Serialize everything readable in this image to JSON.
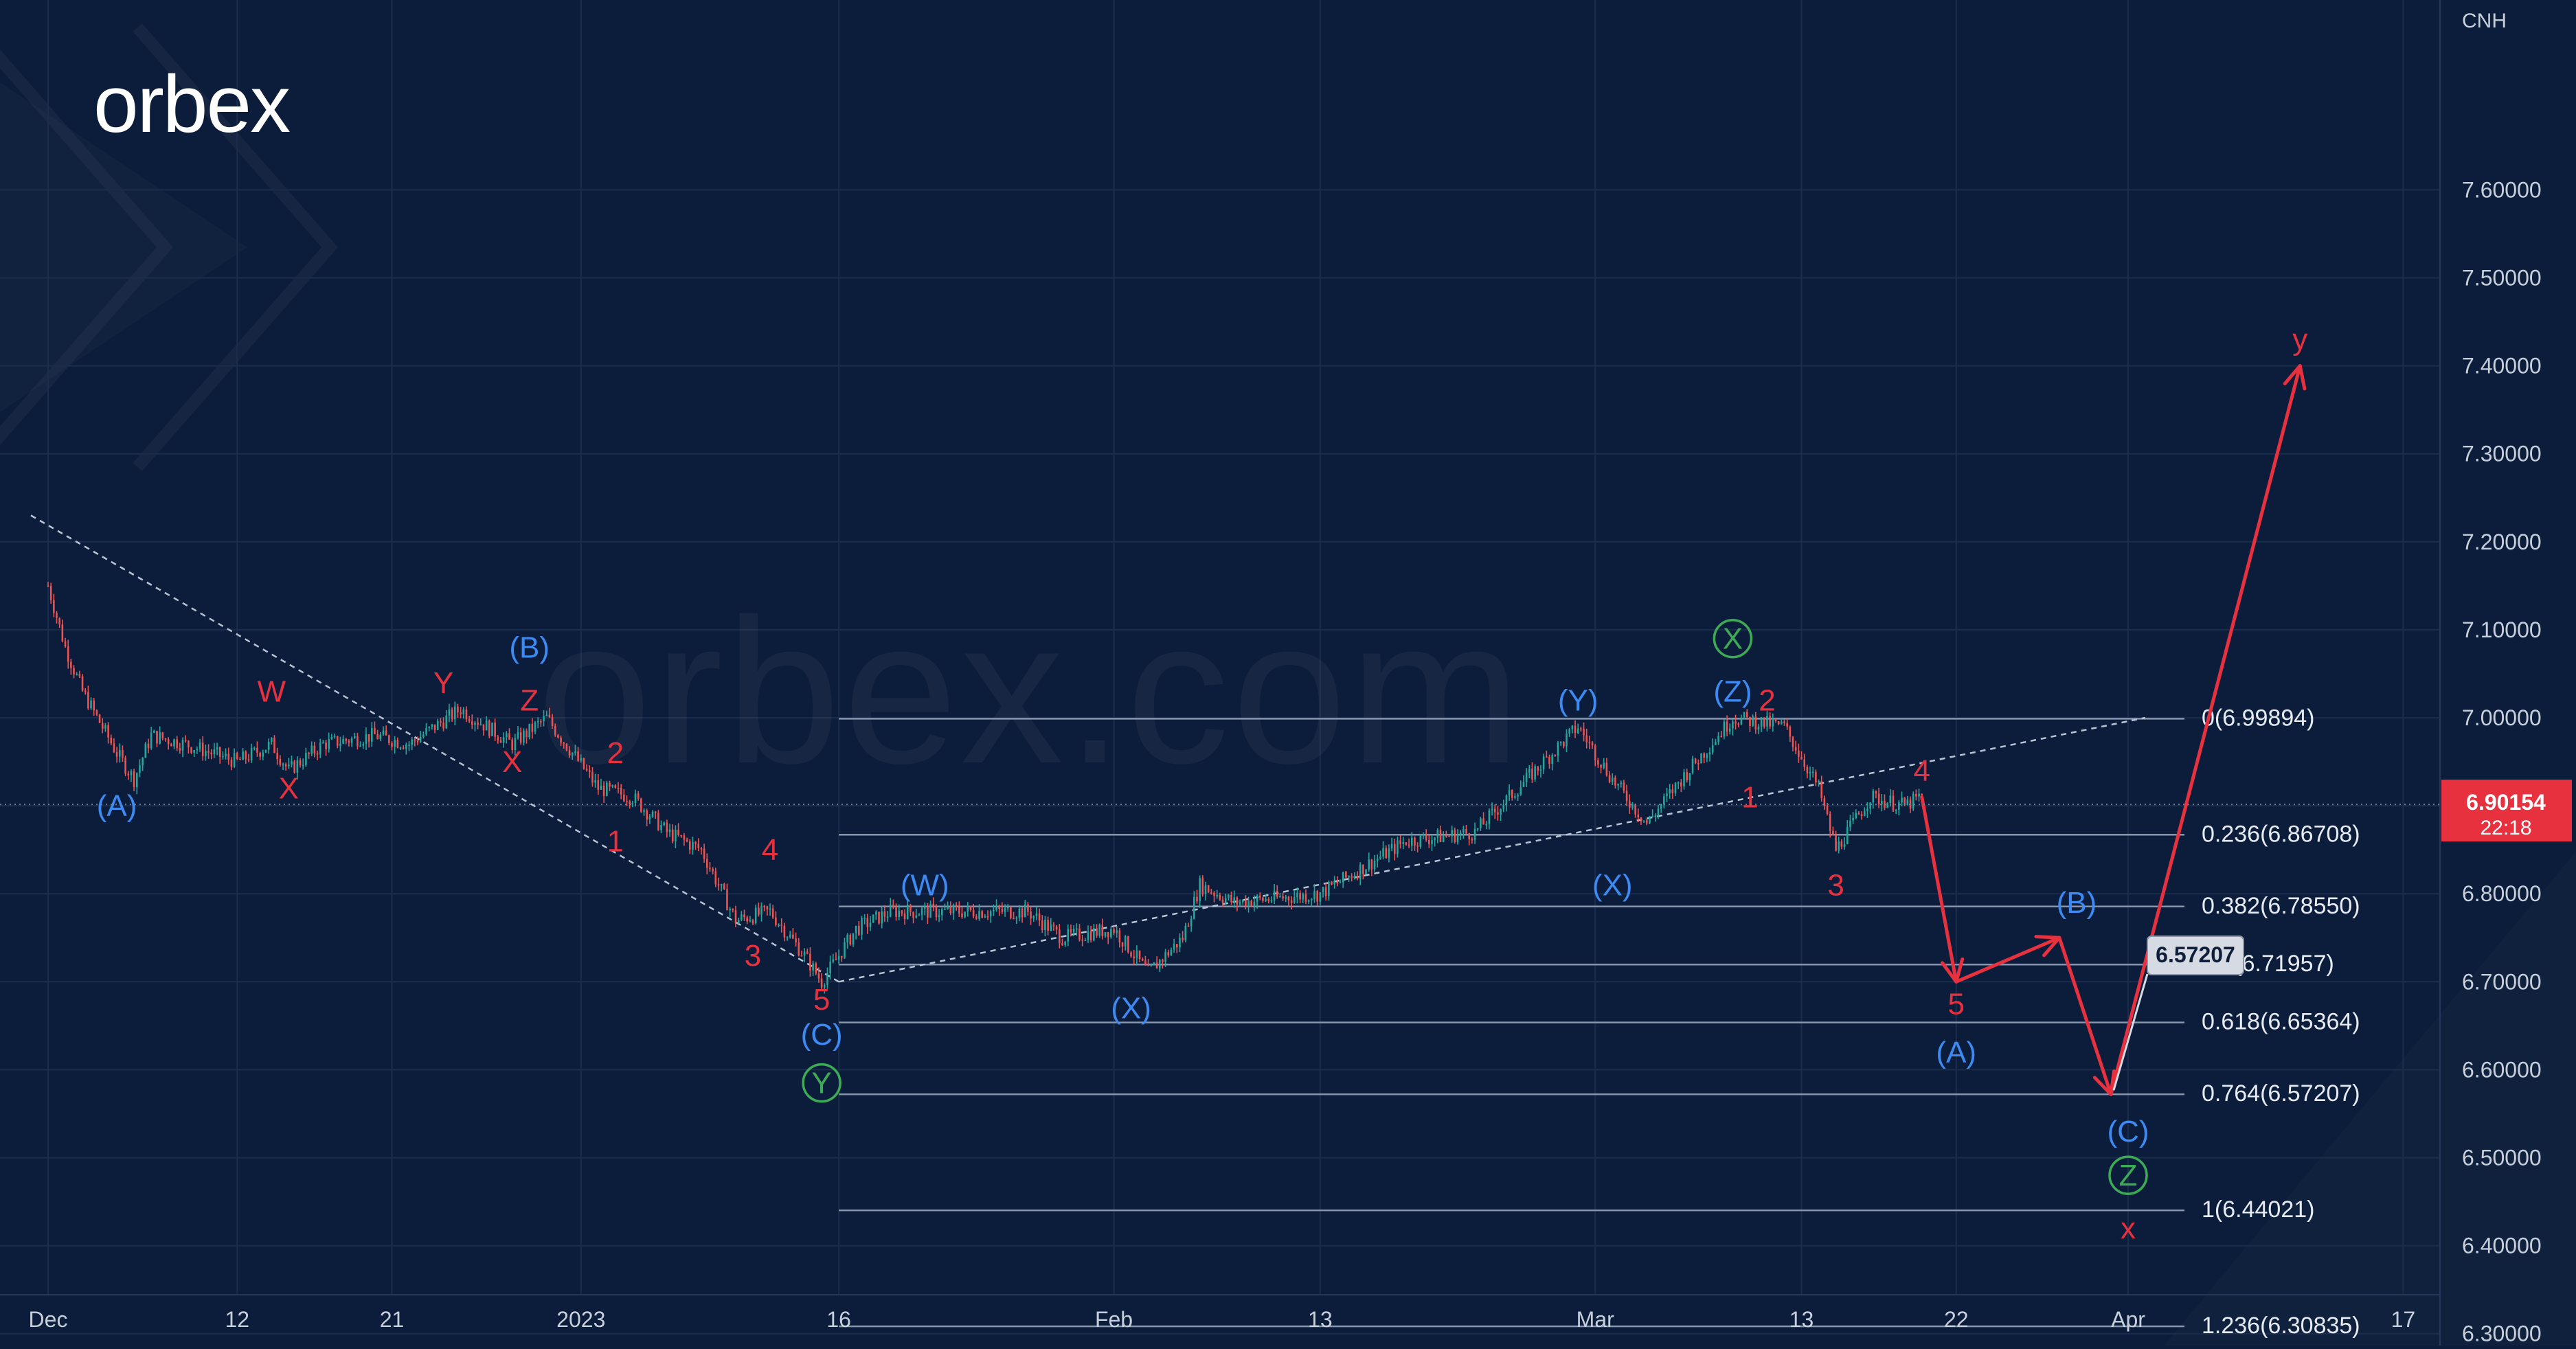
{
  "brand": {
    "logo_text": "orbex",
    "watermark_text": "orbex.com"
  },
  "colors": {
    "background": "#0c1d3b",
    "grid": "#1b2d4d",
    "candle_up": "#26a69a",
    "candle_down": "#ef5350",
    "wave_red": "#e8313f",
    "wave_blue": "#3c8af2",
    "wave_green": "#3daa55",
    "fib_line": "#8796ad",
    "axis_text": "#c7cfdb",
    "price_tag": "#e8313f"
  },
  "chart_data": {
    "type": "candlestick",
    "symbol": "CNH",
    "y_axis": {
      "ticks": [
        "7.60000",
        "7.50000",
        "7.40000",
        "7.30000",
        "7.20000",
        "7.10000",
        "7.00000",
        "6.90000",
        "6.80000",
        "6.70000",
        "6.60000",
        "6.50000",
        "6.40000",
        "6.30000"
      ],
      "range": [
        6.255,
        7.745
      ]
    },
    "x_axis": {
      "ticks": [
        "Dec",
        "12",
        "21",
        "2023",
        "16",
        "Feb",
        "13",
        "Mar",
        "13",
        "22",
        "Apr",
        "17"
      ],
      "dates": [
        "2022-12-01",
        "2022-12-12",
        "2022-12-21",
        "2023-01-01",
        "2023-01-16",
        "2023-02-01",
        "2023-02-13",
        "2023-03-01",
        "2023-03-13",
        "2023-03-22",
        "2023-04-01",
        "2023-04-17"
      ]
    },
    "current_price": {
      "value": "6.90154",
      "countdown": "22:18"
    },
    "price_anchors": [
      [
        "2022-12-01",
        7.15
      ],
      [
        "2022-12-02",
        7.08
      ],
      [
        "2022-12-03",
        7.03
      ],
      [
        "2022-12-05",
        6.96
      ],
      [
        "2022-12-06",
        6.93
      ],
      [
        "2022-12-07",
        6.98
      ],
      [
        "2022-12-09",
        6.97
      ],
      [
        "2022-12-12",
        6.95
      ],
      [
        "2022-12-14",
        6.97
      ],
      [
        "2022-12-15",
        6.94
      ],
      [
        "2022-12-17",
        6.97
      ],
      [
        "2022-12-20",
        6.98
      ],
      [
        "2022-12-22",
        6.97
      ],
      [
        "2022-12-25",
        7.01
      ],
      [
        "2022-12-28",
        6.97
      ],
      [
        "2022-12-30",
        7.0
      ],
      [
        "2023-01-02",
        6.92
      ],
      [
        "2023-01-04",
        6.91
      ],
      [
        "2023-01-06",
        6.87
      ],
      [
        "2023-01-08",
        6.85
      ],
      [
        "2023-01-10",
        6.77
      ],
      [
        "2023-01-12",
        6.78
      ],
      [
        "2023-01-14",
        6.73
      ],
      [
        "2023-01-15",
        6.7
      ],
      [
        "2023-01-17",
        6.76
      ],
      [
        "2023-01-19",
        6.78
      ],
      [
        "2023-01-24",
        6.78
      ],
      [
        "2023-01-27",
        6.78
      ],
      [
        "2023-01-29",
        6.75
      ],
      [
        "2023-02-01",
        6.76
      ],
      [
        "2023-02-03",
        6.71
      ],
      [
        "2023-02-05",
        6.75
      ],
      [
        "2023-02-06",
        6.81
      ],
      [
        "2023-02-08",
        6.79
      ],
      [
        "2023-02-13",
        6.8
      ],
      [
        "2023-02-18",
        6.86
      ],
      [
        "2023-02-22",
        6.87
      ],
      [
        "2023-02-26",
        6.95
      ],
      [
        "2023-02-28",
        6.99
      ],
      [
        "2023-03-02",
        6.93
      ],
      [
        "2023-03-04",
        6.88
      ],
      [
        "2023-03-06",
        6.93
      ],
      [
        "2023-03-09",
        7.0
      ],
      [
        "2023-03-12",
        6.99
      ],
      [
        "2023-03-14",
        6.92
      ],
      [
        "2023-03-15",
        6.85
      ],
      [
        "2023-03-17",
        6.91
      ],
      [
        "2023-03-19",
        6.9
      ],
      [
        "2023-03-20",
        6.91
      ]
    ],
    "fibonacci": [
      {
        "ratio": "0",
        "price": 6.99894,
        "label": "0(6.99894)"
      },
      {
        "ratio": "0.236",
        "price": 6.86708,
        "label": "0.236(6.86708)"
      },
      {
        "ratio": "0.382",
        "price": 6.7855,
        "label": "0.382(6.78550)"
      },
      {
        "ratio": "0.5",
        "price": 6.71957,
        "label": "0.5(6.71957)"
      },
      {
        "ratio": "0.618",
        "price": 6.65364,
        "label": "0.618(6.65364)"
      },
      {
        "ratio": "0.764",
        "price": 6.57207,
        "label": "0.764(6.57207)"
      },
      {
        "ratio": "1",
        "price": 6.44021,
        "label": "1(6.44021)"
      },
      {
        "ratio": "1.236",
        "price": 6.30835,
        "label": "1.236(6.30835)"
      }
    ],
    "fib_start_date": "2023-01-16",
    "fib_label_date": "2023-04-02",
    "target_callout": "6.57207",
    "trendlines": [
      {
        "from": [
          "2022-11-30",
          7.23
        ],
        "to": [
          "2023-01-16",
          6.7
        ]
      },
      {
        "from": [
          "2023-01-16",
          6.7
        ],
        "to": [
          "2023-04-02",
          7.0
        ]
      }
    ],
    "projection": [
      [
        "2023-03-20",
        6.91
      ],
      [
        "2023-03-22",
        6.7
      ],
      [
        "2023-03-28",
        6.75
      ],
      [
        "2023-03-31",
        6.572
      ],
      [
        "2023-04-11",
        7.4
      ]
    ],
    "wave_labels": [
      {
        "text": "(A)",
        "date": "2022-12-05",
        "price": 6.9,
        "color": "blue"
      },
      {
        "text": "W",
        "date": "2022-12-14",
        "price": 7.03,
        "color": "red"
      },
      {
        "text": "X",
        "date": "2022-12-15",
        "price": 6.92,
        "color": "red"
      },
      {
        "text": "Y",
        "date": "2022-12-24",
        "price": 7.04,
        "color": "red"
      },
      {
        "text": "X",
        "date": "2022-12-28",
        "price": 6.95,
        "color": "red"
      },
      {
        "text": "(B)",
        "date": "2022-12-29",
        "price": 7.08,
        "color": "blue"
      },
      {
        "text": "Z",
        "date": "2022-12-29",
        "price": 7.02,
        "color": "red"
      },
      {
        "text": "2",
        "date": "2023-01-03",
        "price": 6.96,
        "color": "red"
      },
      {
        "text": "1",
        "date": "2023-01-03",
        "price": 6.86,
        "color": "red"
      },
      {
        "text": "4",
        "date": "2023-01-12",
        "price": 6.85,
        "color": "red"
      },
      {
        "text": "3",
        "date": "2023-01-11",
        "price": 6.73,
        "color": "red"
      },
      {
        "text": "5",
        "date": "2023-01-15",
        "price": 6.68,
        "color": "red"
      },
      {
        "text": "(C)",
        "date": "2023-01-15",
        "price": 6.64,
        "color": "blue"
      },
      {
        "text": "Y",
        "date": "2023-01-15",
        "price": 6.585,
        "color": "green",
        "circle": true
      },
      {
        "text": "(W)",
        "date": "2023-01-21",
        "price": 6.81,
        "color": "blue"
      },
      {
        "text": "(X)",
        "date": "2023-02-02",
        "price": 6.67,
        "color": "blue"
      },
      {
        "text": "(Y)",
        "date": "2023-02-28",
        "price": 7.02,
        "color": "blue"
      },
      {
        "text": "(X)",
        "date": "2023-03-02",
        "price": 6.81,
        "color": "blue"
      },
      {
        "text": "X",
        "date": "2023-03-09",
        "price": 7.09,
        "color": "green",
        "circle": true
      },
      {
        "text": "(Z)",
        "date": "2023-03-09",
        "price": 7.03,
        "color": "blue"
      },
      {
        "text": "2",
        "date": "2023-03-11",
        "price": 7.02,
        "color": "red"
      },
      {
        "text": "1",
        "date": "2023-03-10",
        "price": 6.91,
        "color": "red"
      },
      {
        "text": "4",
        "date": "2023-03-20",
        "price": 6.94,
        "color": "red"
      },
      {
        "text": "3",
        "date": "2023-03-15",
        "price": 6.81,
        "color": "red"
      },
      {
        "text": "5",
        "date": "2023-03-22",
        "price": 6.675,
        "color": "red"
      },
      {
        "text": "(A)",
        "date": "2023-03-22",
        "price": 6.62,
        "color": "blue"
      },
      {
        "text": "(B)",
        "date": "2023-03-29",
        "price": 6.79,
        "color": "blue"
      },
      {
        "text": "(C)",
        "date": "2023-04-01",
        "price": 6.53,
        "color": "blue"
      },
      {
        "text": "Z",
        "date": "2023-04-01",
        "price": 6.48,
        "color": "green",
        "circle": true
      },
      {
        "text": "x",
        "date": "2023-04-01",
        "price": 6.42,
        "color": "red"
      },
      {
        "text": "y",
        "date": "2023-04-11",
        "price": 7.43,
        "color": "red"
      }
    ]
  }
}
